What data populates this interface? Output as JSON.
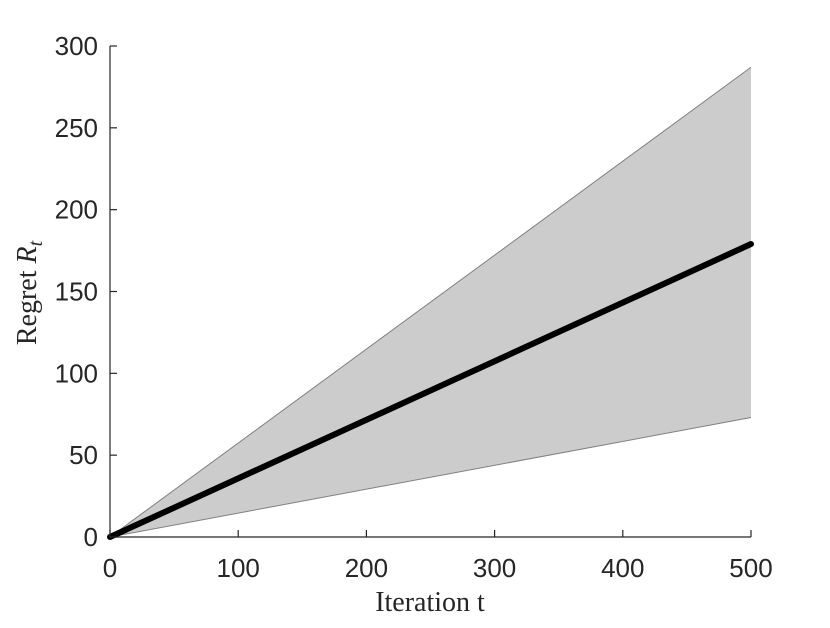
{
  "chart_data": {
    "type": "line",
    "xlabel": "Iteration t",
    "ylabel_text": "Regret ",
    "ylabel_symbol": "R",
    "ylabel_subscript": "t",
    "xlim": [
      0,
      500
    ],
    "ylim": [
      0,
      300
    ],
    "xticks": [
      0,
      100,
      200,
      300,
      400,
      500
    ],
    "yticks": [
      0,
      50,
      100,
      150,
      200,
      250,
      300
    ],
    "grid": false,
    "legend": "none",
    "series": [
      {
        "x": [
          0,
          500
        ],
        "values": [
          0,
          179
        ],
        "lower": [
          0,
          73
        ],
        "upper": [
          0,
          287
        ]
      }
    ],
    "colors": {
      "line": "#000000",
      "band_fill": "#cccccc",
      "band_edge": "#808080",
      "axis": "#262626"
    }
  }
}
